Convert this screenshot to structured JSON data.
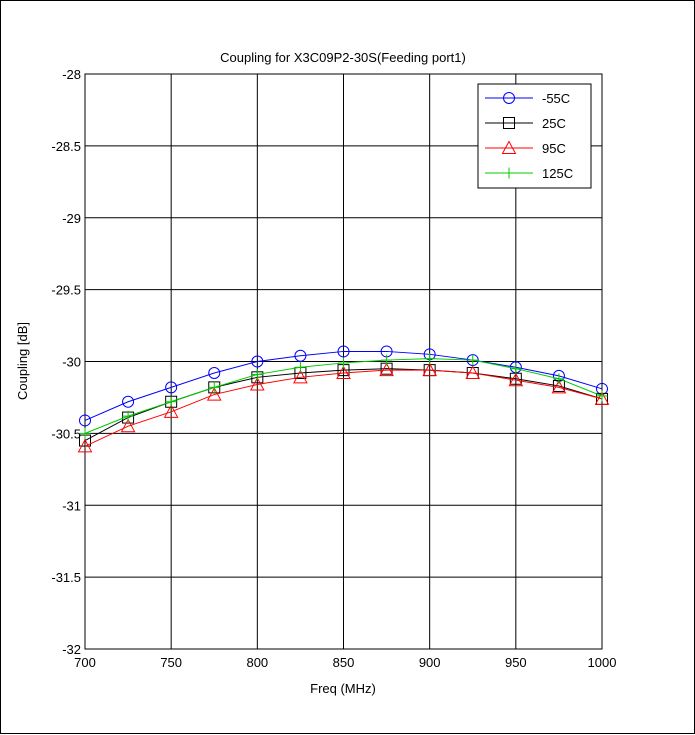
{
  "chart_data": {
    "type": "line",
    "title": "Coupling for X3C09P2-30S(Feeding port1)",
    "xlabel": "Freq (MHz)",
    "ylabel": "Coupling [dB]",
    "xlim": [
      700,
      1000
    ],
    "ylim": [
      -32,
      -28
    ],
    "xticks": [
      700,
      750,
      800,
      850,
      900,
      950,
      1000
    ],
    "yticks": [
      -28,
      -28.5,
      -29,
      -29.5,
      -30,
      -30.5,
      -31,
      -31.5,
      -32
    ],
    "x_tick_labels": [
      "700",
      "750",
      "800",
      "850",
      "900",
      "950",
      "1000"
    ],
    "y_tick_labels": [
      "-28",
      "-28.5",
      "-29",
      "-29.5",
      "-30",
      "-30.5",
      "-31",
      "-31.5",
      "-32"
    ],
    "grid": true,
    "legend_position": "top-right",
    "x": [
      700,
      725,
      750,
      775,
      800,
      825,
      850,
      875,
      900,
      925,
      950,
      975,
      1000
    ],
    "series": [
      {
        "name": "-55C",
        "color": "#0000ff",
        "marker": "circle",
        "values": [
          -30.41,
          -30.28,
          -30.18,
          -30.08,
          -30.0,
          -29.96,
          -29.93,
          -29.93,
          -29.95,
          -29.99,
          -30.04,
          -30.1,
          -30.19
        ]
      },
      {
        "name": "25C",
        "color": "#000000",
        "marker": "square",
        "values": [
          -30.55,
          -30.39,
          -30.28,
          -30.18,
          -30.11,
          -30.08,
          -30.06,
          -30.05,
          -30.06,
          -30.08,
          -30.12,
          -30.17,
          -30.26
        ]
      },
      {
        "name": "95C",
        "color": "#ff0000",
        "marker": "triangle",
        "values": [
          -30.59,
          -30.45,
          -30.35,
          -30.23,
          -30.16,
          -30.11,
          -30.08,
          -30.06,
          -30.06,
          -30.08,
          -30.13,
          -30.18,
          -30.26
        ]
      },
      {
        "name": "125C",
        "color": "#00cc00",
        "marker": "plus",
        "values": [
          -30.5,
          -30.38,
          -30.28,
          -30.18,
          -30.09,
          -30.04,
          -30.01,
          -29.99,
          -29.98,
          -29.99,
          -30.05,
          -30.12,
          -30.24
        ]
      }
    ]
  }
}
